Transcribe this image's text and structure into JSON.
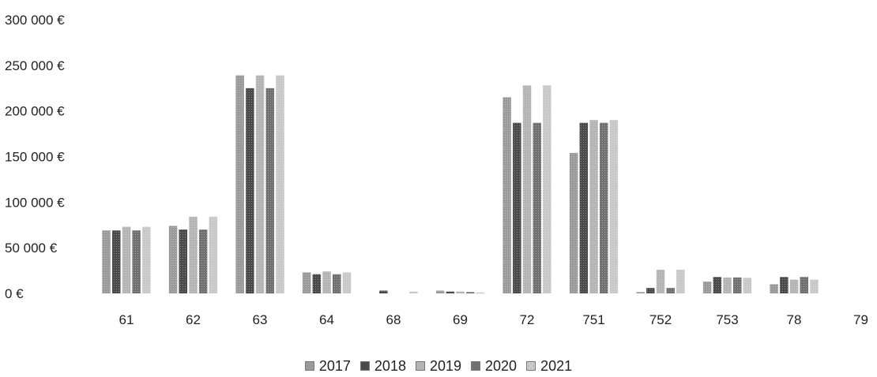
{
  "chart_data": {
    "type": "bar",
    "title": "",
    "xlabel": "",
    "ylabel": "",
    "ylim": [
      0,
      300000
    ],
    "y_ticks": [
      {
        "value": 0,
        "label": "0 €"
      },
      {
        "value": 50000,
        "label": "50 000 €"
      },
      {
        "value": 100000,
        "label": "100 000 €"
      },
      {
        "value": 150000,
        "label": "150 000 €"
      },
      {
        "value": 200000,
        "label": "200 000 €"
      },
      {
        "value": 250000,
        "label": "250 000 €"
      },
      {
        "value": 300000,
        "label": "300 000 €"
      }
    ],
    "grid": false,
    "legend_position": "bottom",
    "categories": [
      "61",
      "62",
      "63",
      "64",
      "68",
      "69",
      "72",
      "751",
      "752",
      "753",
      "78",
      "79"
    ],
    "series": [
      {
        "name": "2017",
        "color": "#9a9a9a",
        "values": [
          69000,
          74000,
          239000,
          23000,
          0,
          3000,
          215000,
          154000,
          1500,
          13000,
          10000,
          0
        ]
      },
      {
        "name": "2018",
        "color": "#4a4a4a",
        "values": [
          69000,
          70000,
          225000,
          21000,
          3000,
          2000,
          187000,
          187000,
          6000,
          18000,
          18000,
          0
        ]
      },
      {
        "name": "2019",
        "color": "#b4b4b4",
        "values": [
          73000,
          84000,
          239000,
          24000,
          0,
          2000,
          228000,
          190000,
          26000,
          17500,
          15000,
          0
        ]
      },
      {
        "name": "2020",
        "color": "#707070",
        "values": [
          69000,
          70000,
          225000,
          21000,
          0,
          1500,
          187000,
          187000,
          6000,
          17500,
          18000,
          0
        ]
      },
      {
        "name": "2021",
        "color": "#c8c8c8",
        "values": [
          73000,
          84000,
          239000,
          23000,
          2000,
          1000,
          228000,
          190000,
          26000,
          17000,
          15000,
          0
        ]
      }
    ]
  }
}
